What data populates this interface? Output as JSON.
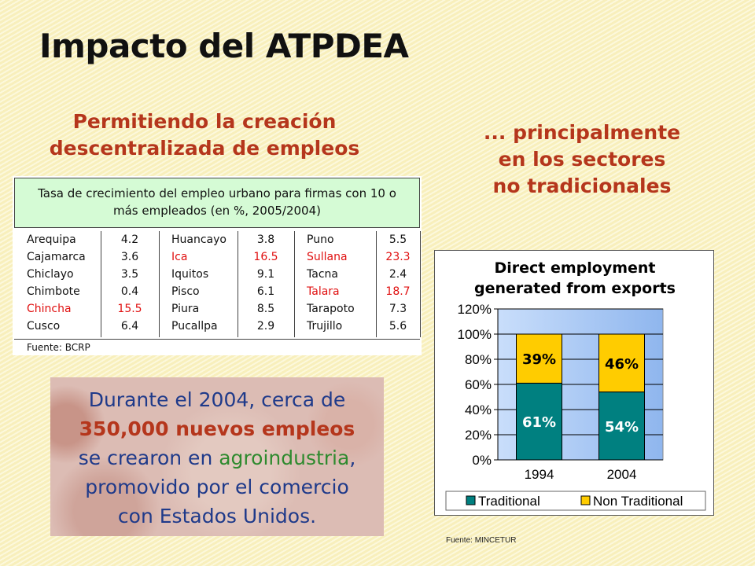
{
  "title": "Impacto del ATPDEA",
  "subtitle_left": [
    "Permitiendo la creación",
    "descentralizada de empleos"
  ],
  "subtitle_right": [
    "... principalmente",
    "en los sectores",
    "no tradicionales"
  ],
  "employment_table": {
    "header": [
      "Tasa de crecimiento del empleo urbano para firmas con 10 o",
      "más empleados (en %, 2005/2004)"
    ],
    "groups": [
      [
        {
          "city": "Arequipa",
          "value": "4.2",
          "highlight": false
        },
        {
          "city": "Cajamarca",
          "value": "3.6",
          "highlight": false
        },
        {
          "city": "Chiclayo",
          "value": "3.5",
          "highlight": false
        },
        {
          "city": "Chimbote",
          "value": "0.4",
          "highlight": false
        },
        {
          "city": "Chincha",
          "value": "15.5",
          "highlight": true
        },
        {
          "city": "Cusco",
          "value": "6.4",
          "highlight": false
        }
      ],
      [
        {
          "city": "Huancayo",
          "value": "3.8",
          "highlight": false
        },
        {
          "city": "Ica",
          "value": "16.5",
          "highlight": true
        },
        {
          "city": "Iquitos",
          "value": "9.1",
          "highlight": false
        },
        {
          "city": "Pisco",
          "value": "6.1",
          "highlight": false
        },
        {
          "city": "Piura",
          "value": "8.5",
          "highlight": false
        },
        {
          "city": "Pucallpa",
          "value": "2.9",
          "highlight": false
        }
      ],
      [
        {
          "city": "Puno",
          "value": "5.5",
          "highlight": false
        },
        {
          "city": "Sullana",
          "value": "23.3",
          "highlight": true
        },
        {
          "city": "Tacna",
          "value": "2.4",
          "highlight": false
        },
        {
          "city": "Talara",
          "value": "18.7",
          "highlight": true
        },
        {
          "city": "Tarapoto",
          "value": "7.3",
          "highlight": false
        },
        {
          "city": "Trujillo",
          "value": "5.6",
          "highlight": false
        }
      ]
    ],
    "source": "Fuente: BCRP",
    "highlight_color": "#e01010"
  },
  "callout": {
    "line1": "Durante el 2004, cerca de",
    "line2": "350,000 nuevos empleos",
    "line3_pre": "se crearon en ",
    "line3_green": "agroindustria",
    "line3_post": ",",
    "line4": "promovido por el comercio",
    "line5": "con Estados Unidos."
  },
  "chart_data": {
    "type": "bar",
    "stacked": true,
    "title": "Direct employment generated from exports",
    "title_lines": [
      "Direct employment",
      "generated from exports"
    ],
    "categories": [
      "1994",
      "2004"
    ],
    "series": [
      {
        "name": "Traditional",
        "values": [
          61,
          54
        ],
        "labels": [
          "61%",
          "54%"
        ],
        "color": "#008080"
      },
      {
        "name": "Non Traditional",
        "values": [
          39,
          46
        ],
        "labels": [
          "39%",
          "46%"
        ],
        "color": "#ffcc00"
      }
    ],
    "ylim": [
      0,
      120
    ],
    "yticks": [
      "0%",
      "20%",
      "40%",
      "60%",
      "80%",
      "100%",
      "120%"
    ],
    "grid": true,
    "legend_position": "bottom",
    "plot_background": "gradient light blue",
    "source": "Fuente: MINCETUR"
  }
}
